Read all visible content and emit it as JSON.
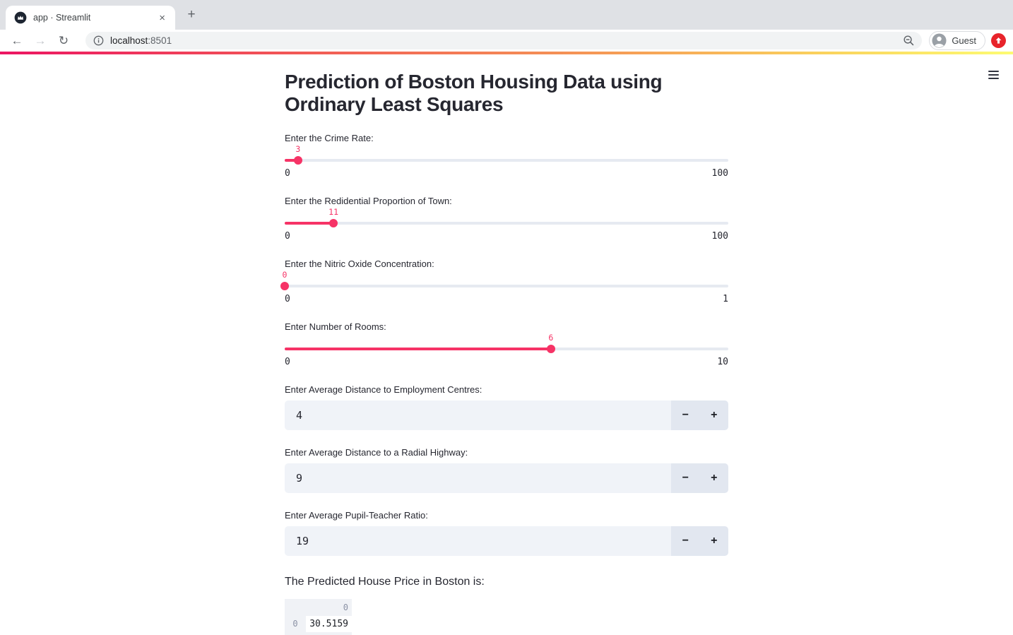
{
  "browser": {
    "tab_title": "app · Streamlit",
    "close_glyph": "×",
    "new_tab_glyph": "+",
    "back_glyph": "←",
    "forward_glyph": "→",
    "reload_glyph": "↻",
    "url_host": "localhost",
    "url_port": ":8501",
    "guest_label": "Guest"
  },
  "colors": {
    "primary": "#f63366",
    "text_dark": "#262730",
    "track_gray": "#e6eaf1",
    "input_bg": "#f0f3f8",
    "stepper_bg": "#e2e7f0",
    "decoration_start": "#ec1562",
    "decoration_mid": "#f59a55",
    "decoration_end": "#fdfb72",
    "extension_badge": "#e8242b"
  },
  "main": {
    "title": "Prediction of Boston Housing Data using Ordinary Least Squares",
    "sliders": [
      {
        "label": "Enter the Crime Rate:",
        "value": 3,
        "min": 0,
        "max": 100,
        "value_display": "3",
        "min_display": "0",
        "max_display": "100"
      },
      {
        "label": "Enter the Redidential Proportion of Town:",
        "value": 11,
        "min": 0,
        "max": 100,
        "value_display": "11",
        "min_display": "0",
        "max_display": "100"
      },
      {
        "label": "Enter the Nitric Oxide Concentration:",
        "value": 0,
        "min": 0,
        "max": 1,
        "value_display": "0",
        "min_display": "0",
        "max_display": "1"
      },
      {
        "label": "Enter Number of Rooms:",
        "value": 6,
        "min": 0,
        "max": 10,
        "value_display": "6",
        "min_display": "0",
        "max_display": "10"
      }
    ],
    "stepper": {
      "minus": "−",
      "plus": "+"
    },
    "number_inputs": [
      {
        "label": "Enter Average Distance to Employment Centres:",
        "value": "4"
      },
      {
        "label": "Enter Average Distance to a Radial Highway:",
        "value": "9"
      },
      {
        "label": "Enter Average Pupil-Teacher Ratio:",
        "value": "19"
      }
    ],
    "result_text": "The Predicted House Price in Boston is:",
    "result_table": {
      "column_headers": [
        "0"
      ],
      "rows": [
        {
          "index": "0",
          "values": [
            "30.5159"
          ]
        }
      ]
    }
  }
}
